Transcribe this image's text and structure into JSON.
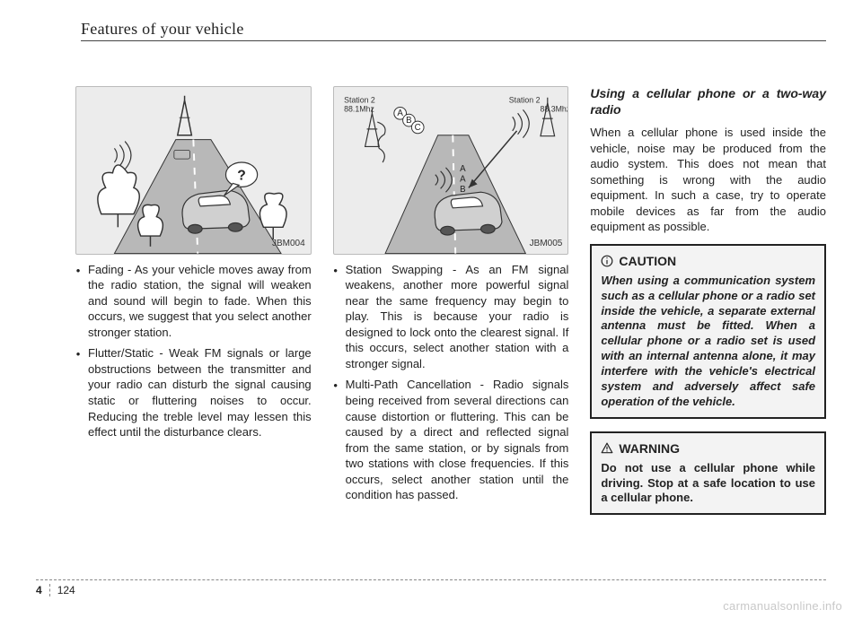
{
  "header": {
    "title": "Features of your vehicle"
  },
  "col1": {
    "figure_code": "JBM004",
    "bullets": [
      "Fading - As your vehicle moves away from the radio station, the signal will weaken and sound will begin to fade. When this occurs, we suggest that you select another stronger station.",
      "Flutter/Static - Weak FM signals or large obstructions between the transmitter and your radio can disturb the signal causing static or fluttering noises to occur. Reducing the treble level may lessen this effect until the disturbance clears."
    ],
    "q_mark": "?"
  },
  "col2": {
    "figure_code": "JBM005",
    "station_a": "Station 2\n88.1Mhz",
    "station_b": "Station 2\n88.3Mhz",
    "lbl_abc": [
      "A",
      "B",
      "C"
    ],
    "lbl_aab": [
      "A",
      "A",
      "B"
    ],
    "bullets": [
      "Station Swapping - As an FM signal weakens, another more powerful signal near the same frequency may begin to play. This is because your radio is designed to lock onto the clearest signal. If this occurs, select another station with a stronger signal.",
      "Multi-Path Cancellation - Radio signals being received from several directions can cause distortion or fluttering. This can be caused by a direct and reflected signal from the same station, or by signals from two stations with close frequencies. If this occurs, select another station until the condition has passed."
    ]
  },
  "col3": {
    "subhead": "Using a cellular phone or a two-way radio",
    "para": "When a cellular phone is used inside the vehicle, noise may be produced from the audio system. This does not mean that something is wrong with the audio equipment. In such a case, try to operate mobile devices as far from the audio equipment as possible.",
    "caution": {
      "title": "CAUTION",
      "body": "When using a communication system such as a cellular phone or a radio set inside the vehicle, a separate external antenna must be fitted. When a cellular phone or a radio set is used with an internal antenna alone, it may interfere with the vehicle's electrical system and adversely affect safe operation of the vehicle."
    },
    "warning": {
      "title": "WARNING",
      "body": "Do not use a cellular phone while driving. Stop at a safe location to use a cellular phone."
    }
  },
  "footer": {
    "chapter": "4",
    "page": "124"
  },
  "watermark": "carmanualsonline.info",
  "colors": {
    "fig_bg": "#ececec",
    "road": "#b8b8b8",
    "road_line": "#ffffff",
    "car": "#d0d0d0",
    "stroke": "#333333"
  }
}
